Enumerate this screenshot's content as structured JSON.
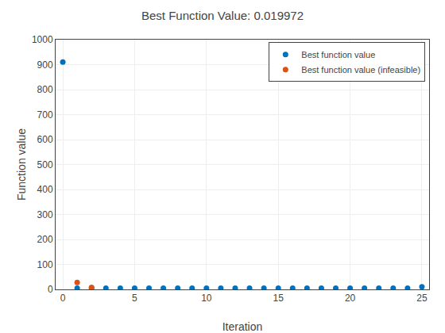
{
  "chart_data": {
    "type": "scatter",
    "title": "Best Function Value: 0.019972",
    "xlabel": "Iteration",
    "ylabel": "Function value",
    "series": [
      {
        "name": "Best function value",
        "color": "#0072BD",
        "marker": "circle",
        "x": [
          0,
          1,
          2,
          3,
          4,
          5,
          6,
          7,
          8,
          9,
          10,
          11,
          12,
          13,
          14,
          15,
          16,
          17,
          18,
          19,
          20,
          21,
          22,
          23,
          24,
          25
        ],
        "values": [
          910,
          5,
          5,
          5,
          5,
          5,
          5,
          5,
          5,
          5,
          5,
          5,
          5,
          5,
          5,
          5,
          5,
          5,
          5,
          5,
          5,
          5,
          5,
          5,
          5,
          10
        ]
      },
      {
        "name": "Best function value (infeasible)",
        "color": "#D95319",
        "marker": "circle",
        "x": [
          1,
          2
        ],
        "values": [
          28,
          8
        ]
      }
    ],
    "xlim": [
      -0.5,
      25.5
    ],
    "xticks": [
      0,
      5,
      10,
      15,
      20,
      25
    ],
    "ylim": [
      0,
      1000
    ],
    "yticks": [
      0,
      100,
      200,
      300,
      400,
      500,
      600,
      700,
      800,
      900,
      1000
    ],
    "grid": true,
    "legend": "upper right"
  }
}
